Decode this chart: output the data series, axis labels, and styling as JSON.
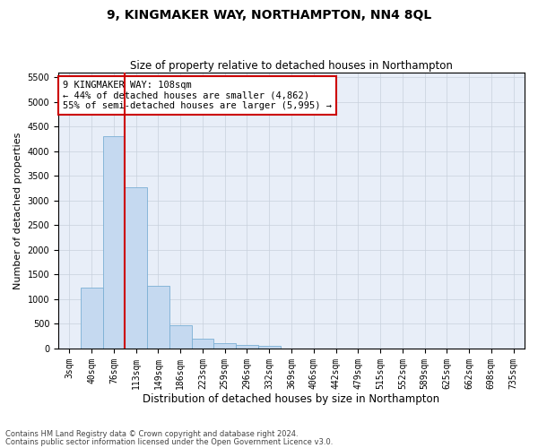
{
  "title1": "9, KINGMAKER WAY, NORTHAMPTON, NN4 8QL",
  "title2": "Size of property relative to detached houses in Northampton",
  "xlabel": "Distribution of detached houses by size in Northampton",
  "ylabel": "Number of detached properties",
  "footer1": "Contains HM Land Registry data © Crown copyright and database right 2024.",
  "footer2": "Contains public sector information licensed under the Open Government Licence v3.0.",
  "annotation_line1": "9 KINGMAKER WAY: 108sqm",
  "annotation_line2": "← 44% of detached houses are smaller (4,862)",
  "annotation_line3": "55% of semi-detached houses are larger (5,995) →",
  "bar_color": "#c5d9f0",
  "bar_edge_color": "#7bafd4",
  "vline_color": "#cc0000",
  "annotation_box_edge_color": "#cc0000",
  "categories": [
    "3sqm",
    "40sqm",
    "76sqm",
    "113sqm",
    "149sqm",
    "186sqm",
    "223sqm",
    "259sqm",
    "296sqm",
    "332sqm",
    "369sqm",
    "406sqm",
    "442sqm",
    "479sqm",
    "515sqm",
    "552sqm",
    "589sqm",
    "625sqm",
    "662sqm",
    "698sqm",
    "735sqm"
  ],
  "values": [
    0,
    1230,
    4300,
    3260,
    1270,
    480,
    200,
    100,
    65,
    50,
    0,
    0,
    0,
    0,
    0,
    0,
    0,
    0,
    0,
    0,
    0
  ],
  "vline_x": 2.5,
  "ylim": [
    0,
    5600
  ],
  "yticks": [
    0,
    500,
    1000,
    1500,
    2000,
    2500,
    3000,
    3500,
    4000,
    4500,
    5000,
    5500
  ],
  "grid_color": "#c8d0dc",
  "bg_color": "#e8eef8",
  "title1_fontsize": 10,
  "title2_fontsize": 8.5,
  "ylabel_fontsize": 8,
  "xlabel_fontsize": 8.5,
  "tick_fontsize": 7,
  "ann_fontsize": 7.5
}
